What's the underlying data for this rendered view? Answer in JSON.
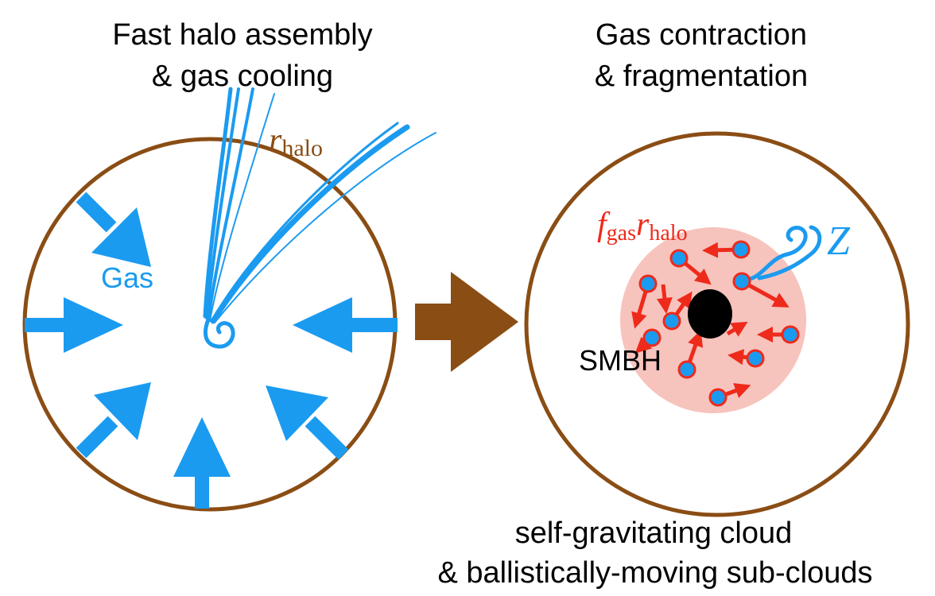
{
  "left_panel": {
    "title_line1": "Fast halo assembly",
    "title_line2": "& gas cooling",
    "radius_label_main": "r",
    "radius_label_sub": "halo",
    "gas_label": "Gas"
  },
  "right_panel": {
    "title_line1": "Gas contraction",
    "title_line2": "& fragmentation",
    "inner_label_f": "f",
    "inner_label_f_sub": "gas",
    "inner_label_r": "r",
    "inner_label_r_sub": "halo",
    "metal_label": "Z",
    "bh_label": "SMBH",
    "caption_line1": "self-gravitating cloud",
    "caption_line2": "& ballistically-moving sub-clouds"
  },
  "colors": {
    "halo": "#8a4d14",
    "gas": "#1b9bf0",
    "subcloud_arrow": "#ee2a1b",
    "cloud_fill": "#f7c3bd",
    "bh": "#000000"
  }
}
